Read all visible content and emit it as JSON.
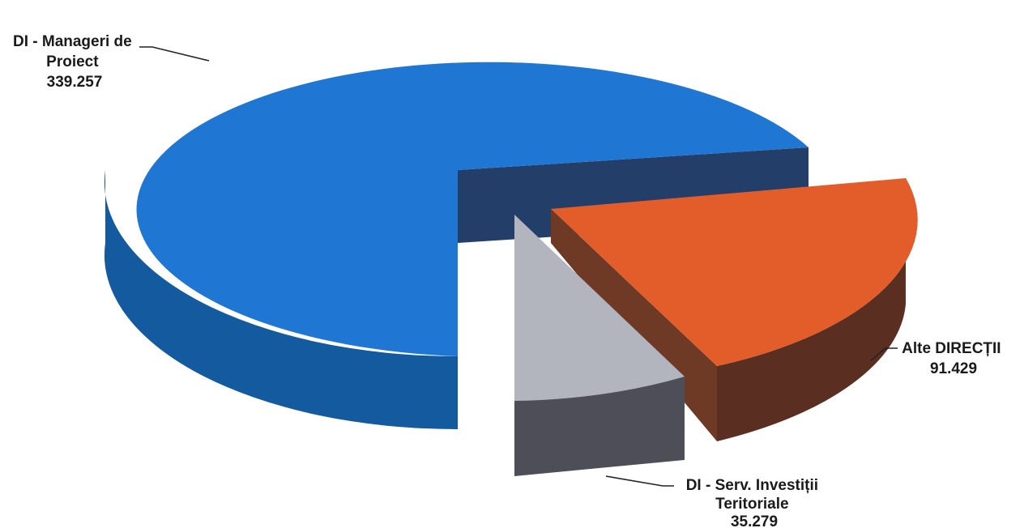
{
  "chart_data": {
    "type": "pie",
    "style": "3d-exploded",
    "slices": [
      {
        "key": "managers",
        "label_lines": [
          "DI - Manageri de",
          "Proiect"
        ],
        "value_text": "339.257",
        "value": 339257,
        "color": "#1f77d3",
        "side_color": "#145a9e",
        "inner_color": "#233e68"
      },
      {
        "key": "alte",
        "label_lines": [
          "Alte DIRECȚII"
        ],
        "value_text": "91.429",
        "value": 91429,
        "color": "#e35d2a",
        "side_color": "#5a2f22",
        "inner_color": "#6e3a26"
      },
      {
        "key": "serv",
        "label_lines": [
          "DI - Serv. Investiții",
          "Teritoriale"
        ],
        "value_text": "35.279",
        "value": 35279,
        "color": "#b3b5be",
        "side_color": "#4d4e57",
        "inner_color": "#5f6068"
      }
    ]
  }
}
